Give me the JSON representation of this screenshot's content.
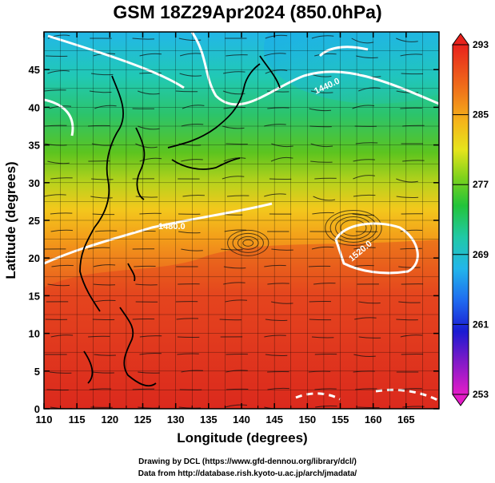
{
  "title": "GSM 18Z29Apr2024 (850.0hPa)",
  "map": {
    "xlabel": "Longitude (degrees)",
    "ylabel": "Latitude  (degrees)",
    "xlim": [
      110,
      170
    ],
    "ylim": [
      0,
      50
    ],
    "x_ticks": [
      "110",
      "115",
      "120",
      "125",
      "130",
      "135",
      "140",
      "145",
      "150",
      "155",
      "160",
      "165"
    ],
    "y_ticks": [
      "0",
      "5",
      "10",
      "15",
      "20",
      "25",
      "30",
      "35",
      "40",
      "45"
    ],
    "contour_labels": [
      "1440.0",
      "1480.0",
      "1520.0"
    ]
  },
  "colorbar": {
    "labels": [
      "293",
      "285",
      "277",
      "269",
      "261",
      "253"
    ]
  },
  "credits": {
    "line1": "Drawing by DCL (https://www.gfd-dennou.org/library/dcl/)",
    "line2": "Data from http://database.rish.kyoto-u.ac.jp/arch/jmadata/"
  }
}
